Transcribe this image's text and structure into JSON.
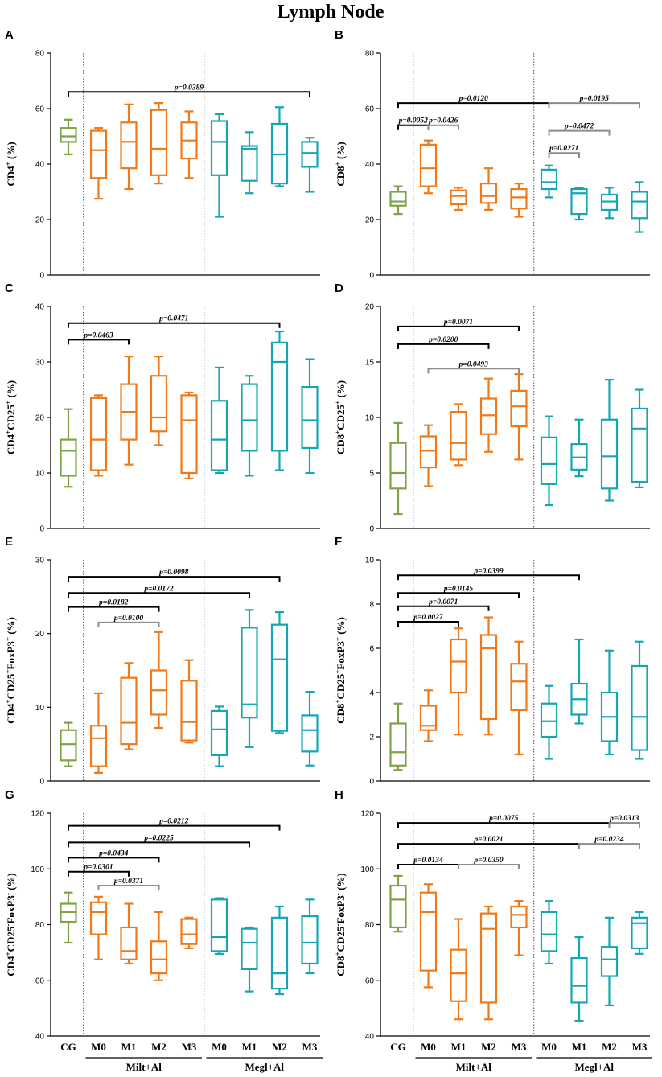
{
  "title": "Lymph Node",
  "colors": {
    "CG": "#7ea347",
    "Milt": "#f07a1a",
    "Megl": "#14a6b5",
    "sig_black": "#000000",
    "sig_gray": "#8c8c8c"
  },
  "categories": [
    "CG",
    "M0",
    "M1",
    "M2",
    "M3",
    "M0",
    "M1",
    "M2",
    "M3"
  ],
  "groups": [
    {
      "label": "Milt+Al",
      "from": 1,
      "to": 4
    },
    {
      "label": "Megl+Al",
      "from": 5,
      "to": 8
    }
  ],
  "chart_data": [
    {
      "panel": "A",
      "type": "box",
      "ylabel": "CD4",
      "ylabel_sup": "+",
      "ylabel_suffix": " (%)",
      "ylim": [
        0,
        80
      ],
      "yticks": [
        0,
        20,
        40,
        60,
        80
      ],
      "yticklabels": [
        "0",
        "20",
        "40",
        "60",
        "80"
      ],
      "boxes": [
        {
          "min": 43.5,
          "q1": 48,
          "median": 50,
          "q3": 53,
          "max": 56
        },
        {
          "min": 27.5,
          "q1": 35,
          "median": 45,
          "q3": 52,
          "max": 53
        },
        {
          "min": 31,
          "q1": 38.5,
          "median": 48,
          "q3": 55,
          "max": 61.5
        },
        {
          "min": 33,
          "q1": 36,
          "median": 45.5,
          "q3": 59.5,
          "max": 62
        },
        {
          "min": 35,
          "q1": 42,
          "median": 48.5,
          "q3": 55,
          "max": 59
        },
        {
          "min": 21,
          "q1": 36,
          "median": 48,
          "q3": 55.5,
          "max": 58
        },
        {
          "min": 29.5,
          "q1": 34,
          "median": 45.5,
          "q3": 46.5,
          "max": 51.5
        },
        {
          "min": 32,
          "q1": 33,
          "median": 43.5,
          "q3": 54.5,
          "max": 60.5
        },
        {
          "min": 30,
          "q1": 39,
          "median": 44,
          "q3": 48,
          "max": 49.5
        }
      ],
      "comparisons": [
        {
          "from": 0,
          "to": 8,
          "label": "p=0.0389",
          "color": "black",
          "y": 66
        }
      ]
    },
    {
      "panel": "B",
      "type": "box",
      "ylabel": "CD8",
      "ylabel_sup": "+",
      "ylabel_suffix": " (%)",
      "ylim": [
        0,
        80
      ],
      "yticks": [
        0,
        20,
        40,
        60,
        80
      ],
      "yticklabels": [
        "0",
        "20",
        "40",
        "60",
        "80"
      ],
      "boxes": [
        {
          "min": 22,
          "q1": 25,
          "median": 26.5,
          "q3": 30,
          "max": 32
        },
        {
          "min": 29.5,
          "q1": 32,
          "median": 38.5,
          "q3": 47,
          "max": 48.5
        },
        {
          "min": 23.5,
          "q1": 25.5,
          "median": 28.5,
          "q3": 30.5,
          "max": 31.5
        },
        {
          "min": 23.5,
          "q1": 26,
          "median": 28.5,
          "q3": 33,
          "max": 38.5
        },
        {
          "min": 21,
          "q1": 24,
          "median": 28,
          "q3": 31,
          "max": 33
        },
        {
          "min": 28,
          "q1": 31,
          "median": 33.5,
          "q3": 38,
          "max": 39.5
        },
        {
          "min": 20,
          "q1": 22,
          "median": 29.5,
          "q3": 31,
          "max": 31.5
        },
        {
          "min": 20.5,
          "q1": 23.5,
          "median": 26.5,
          "q3": 29,
          "max": 31.5
        },
        {
          "min": 15.5,
          "q1": 20.5,
          "median": 26.5,
          "q3": 30,
          "max": 33.5
        }
      ],
      "comparisons": [
        {
          "from": 0,
          "to": 5,
          "label": "p=0.0120",
          "color": "black",
          "y": 62
        },
        {
          "from": 5,
          "to": 8,
          "label": "p=0.0195",
          "color": "gray",
          "y": 62
        },
        {
          "from": 0,
          "to": 1,
          "label": "p=0.0052",
          "color": "black",
          "y": 54
        },
        {
          "from": 1,
          "to": 2,
          "label": "p=0.0426",
          "color": "gray",
          "y": 54
        },
        {
          "from": 5,
          "to": 7,
          "label": "p=0.0472",
          "color": "gray",
          "y": 52
        },
        {
          "from": 5,
          "to": 6,
          "label": "p=0.0271",
          "color": "gray",
          "y": 44
        }
      ]
    },
    {
      "panel": "C",
      "type": "box",
      "ylabel": "CD4",
      "ylabel_sup": "+",
      "ylabel_mid": "CD25",
      "ylabel_sup2": "+",
      "ylabel_suffix": " (%)",
      "ylim": [
        0,
        40
      ],
      "yticks": [
        0,
        10,
        20,
        30,
        40
      ],
      "yticklabels": [
        "0",
        "10",
        "20",
        "30",
        "40"
      ],
      "boxes": [
        {
          "min": 7.5,
          "q1": 9.5,
          "median": 14,
          "q3": 16,
          "max": 21.5
        },
        {
          "min": 9.5,
          "q1": 10.5,
          "median": 16,
          "q3": 23.5,
          "max": 24
        },
        {
          "min": 11.5,
          "q1": 16,
          "median": 21,
          "q3": 26,
          "max": 31
        },
        {
          "min": 15,
          "q1": 17.5,
          "median": 20,
          "q3": 27.5,
          "max": 31
        },
        {
          "min": 9,
          "q1": 10,
          "median": 19.5,
          "q3": 24,
          "max": 24.5
        },
        {
          "min": 10,
          "q1": 10.5,
          "median": 16,
          "q3": 23,
          "max": 29
        },
        {
          "min": 9.5,
          "q1": 14,
          "median": 19.5,
          "q3": 26,
          "max": 27.5
        },
        {
          "min": 10.5,
          "q1": 14,
          "median": 30,
          "q3": 33.5,
          "max": 35.5
        },
        {
          "min": 10,
          "q1": 14.5,
          "median": 19.5,
          "q3": 25.5,
          "max": 30.5
        }
      ],
      "comparisons": [
        {
          "from": 0,
          "to": 7,
          "label": "p=0.0471",
          "color": "black",
          "y": 37
        },
        {
          "from": 0,
          "to": 2,
          "label": "p=0.0463",
          "color": "black",
          "y": 34
        }
      ]
    },
    {
      "panel": "D",
      "type": "box",
      "ylabel": "CD8",
      "ylabel_sup": "+",
      "ylabel_mid": "CD25",
      "ylabel_sup2": "+",
      "ylabel_suffix": " (%)",
      "ylim": [
        0,
        20
      ],
      "yticks": [
        0,
        5,
        10,
        15,
        20
      ],
      "yticklabels": [
        "0",
        "5",
        "10",
        "15",
        "20"
      ],
      "boxes": [
        {
          "min": 1.3,
          "q1": 3.6,
          "median": 5,
          "q3": 7.7,
          "max": 9.5
        },
        {
          "min": 3.8,
          "q1": 5.5,
          "median": 7,
          "q3": 8.3,
          "max": 9.3
        },
        {
          "min": 5.7,
          "q1": 6.2,
          "median": 7.7,
          "q3": 10.5,
          "max": 11.2
        },
        {
          "min": 6.9,
          "q1": 8.5,
          "median": 10.2,
          "q3": 11.7,
          "max": 13.5
        },
        {
          "min": 6.2,
          "q1": 9.2,
          "median": 11,
          "q3": 12.4,
          "max": 13.9
        },
        {
          "min": 2.1,
          "q1": 4,
          "median": 5.8,
          "q3": 8.2,
          "max": 10.1
        },
        {
          "min": 4.7,
          "q1": 5.3,
          "median": 6.4,
          "q3": 7.6,
          "max": 9.8
        },
        {
          "min": 2.5,
          "q1": 3.6,
          "median": 6.5,
          "q3": 9.8,
          "max": 13.4
        },
        {
          "min": 3.7,
          "q1": 4.2,
          "median": 9,
          "q3": 10.8,
          "max": 12.5
        }
      ],
      "comparisons": [
        {
          "from": 0,
          "to": 4,
          "label": "p=0.0071",
          "color": "black",
          "y": 18.2
        },
        {
          "from": 0,
          "to": 3,
          "label": "p=0.0200",
          "color": "black",
          "y": 16.6
        },
        {
          "from": 1,
          "to": 4,
          "label": "p=0.0493",
          "color": "gray",
          "y": 14.4
        }
      ]
    },
    {
      "panel": "E",
      "type": "box",
      "ylabel": "CD4",
      "ylabel_sup": "+",
      "ylabel_mid": "CD25",
      "ylabel_sup2": "+",
      "ylabel_mid2": "FoxP3",
      "ylabel_sup3": "+",
      "ylabel_suffix": " (%)",
      "ylim": [
        0,
        30
      ],
      "yticks": [
        0,
        10,
        20,
        30
      ],
      "yticklabels": [
        "0",
        "10",
        "20",
        "30"
      ],
      "boxes": [
        {
          "min": 2,
          "q1": 2.8,
          "median": 5,
          "q3": 6.9,
          "max": 7.9
        },
        {
          "min": 1.1,
          "q1": 2,
          "median": 5.8,
          "q3": 7.5,
          "max": 11.9
        },
        {
          "min": 4.3,
          "q1": 5,
          "median": 7.9,
          "q3": 14,
          "max": 16
        },
        {
          "min": 7.2,
          "q1": 9,
          "median": 12.3,
          "q3": 15,
          "max": 20.2
        },
        {
          "min": 5.2,
          "q1": 5.5,
          "median": 8,
          "q3": 13.6,
          "max": 16.4
        },
        {
          "min": 2,
          "q1": 3.5,
          "median": 7,
          "q3": 9.5,
          "max": 10.1
        },
        {
          "min": 4.6,
          "q1": 8.6,
          "median": 10.4,
          "q3": 20.8,
          "max": 23.2
        },
        {
          "min": 6.5,
          "q1": 6.8,
          "median": 16.5,
          "q3": 21.2,
          "max": 22.9
        },
        {
          "min": 2.1,
          "q1": 4,
          "median": 6.9,
          "q3": 8.9,
          "max": 12.1
        }
      ],
      "comparisons": [
        {
          "from": 0,
          "to": 7,
          "label": "p=0.0098",
          "color": "black",
          "y": 27.7
        },
        {
          "from": 0,
          "to": 6,
          "label": "p=0.0172",
          "color": "black",
          "y": 25.5
        },
        {
          "from": 0,
          "to": 3,
          "label": "p=0.0182",
          "color": "black",
          "y": 23.6
        },
        {
          "from": 1,
          "to": 3,
          "label": "p=0.0100",
          "color": "gray",
          "y": 21.5
        }
      ]
    },
    {
      "panel": "F",
      "type": "box",
      "ylabel": "CD8",
      "ylabel_sup": "+",
      "ylabel_mid": "CD25",
      "ylabel_sup2": "+",
      "ylabel_mid2": "FoxP3",
      "ylabel_sup3": "+",
      "ylabel_suffix": " (%)",
      "ylim": [
        0,
        10
      ],
      "yticks": [
        0,
        2,
        4,
        6,
        8,
        10
      ],
      "yticklabels": [
        "0",
        "2",
        "4",
        "6",
        "8",
        "10"
      ],
      "boxes": [
        {
          "min": 0.5,
          "q1": 0.7,
          "median": 1.3,
          "q3": 2.6,
          "max": 3.5
        },
        {
          "min": 1.8,
          "q1": 2.3,
          "median": 2.5,
          "q3": 3.4,
          "max": 4.1
        },
        {
          "min": 2.1,
          "q1": 4,
          "median": 5.4,
          "q3": 6.4,
          "max": 6.9
        },
        {
          "min": 2.1,
          "q1": 2.8,
          "median": 6,
          "q3": 6.6,
          "max": 7.4
        },
        {
          "min": 1.2,
          "q1": 3.2,
          "median": 4.5,
          "q3": 5.3,
          "max": 6.3
        },
        {
          "min": 1,
          "q1": 2,
          "median": 2.7,
          "q3": 3.5,
          "max": 4.3
        },
        {
          "min": 2.6,
          "q1": 3,
          "median": 3.7,
          "q3": 4.4,
          "max": 6.4
        },
        {
          "min": 1.2,
          "q1": 1.8,
          "median": 2.9,
          "q3": 4,
          "max": 5.9
        },
        {
          "min": 1,
          "q1": 1.4,
          "median": 2.9,
          "q3": 5.2,
          "max": 6.3
        }
      ],
      "comparisons": [
        {
          "from": 0,
          "to": 6,
          "label": "p=0.0399",
          "color": "black",
          "y": 9.3
        },
        {
          "from": 0,
          "to": 4,
          "label": "p=0.0145",
          "color": "black",
          "y": 8.5
        },
        {
          "from": 0,
          "to": 3,
          "label": "p=0.0071",
          "color": "black",
          "y": 7.9
        },
        {
          "from": 0,
          "to": 2,
          "label": "p=0.0027",
          "color": "black",
          "y": 7.2
        }
      ]
    },
    {
      "panel": "G",
      "type": "box",
      "ylabel": "CD4",
      "ylabel_sup": "+",
      "ylabel_mid": "CD25",
      "ylabel_sup2": "-",
      "ylabel_mid2": "FoxP3",
      "ylabel_sup3": "-",
      "ylabel_suffix": " (%)",
      "ylim": [
        40,
        120
      ],
      "yticks": [
        40,
        60,
        80,
        100,
        120
      ],
      "yticklabels": [
        "40",
        "60",
        "80",
        "100",
        "120"
      ],
      "boxes": [
        {
          "min": 73.5,
          "q1": 81,
          "median": 84.5,
          "q3": 87.5,
          "max": 91.5
        },
        {
          "min": 67.5,
          "q1": 76.5,
          "median": 84.5,
          "q3": 88,
          "max": 90
        },
        {
          "min": 66,
          "q1": 67.5,
          "median": 70.5,
          "q3": 79,
          "max": 87.5
        },
        {
          "min": 60,
          "q1": 62.5,
          "median": 67.5,
          "q3": 74,
          "max": 84.5
        },
        {
          "min": 71.5,
          "q1": 73,
          "median": 76.5,
          "q3": 82,
          "max": 82.5
        },
        {
          "min": 69.5,
          "q1": 70.5,
          "median": 75.5,
          "q3": 89,
          "max": 89.5
        },
        {
          "min": 56,
          "q1": 64,
          "median": 73.5,
          "q3": 78.5,
          "max": 79
        },
        {
          "min": 55,
          "q1": 57,
          "median": 62.5,
          "q3": 82.5,
          "max": 86.5
        },
        {
          "min": 62.5,
          "q1": 66,
          "median": 73.5,
          "q3": 83,
          "max": 89
        }
      ],
      "comparisons": [
        {
          "from": 0,
          "to": 7,
          "label": "p=0.0212",
          "color": "black",
          "y": 115.5
        },
        {
          "from": 0,
          "to": 6,
          "label": "p=0.0225",
          "color": "black",
          "y": 109.5
        },
        {
          "from": 0,
          "to": 3,
          "label": "p=0.0434",
          "color": "black",
          "y": 104
        },
        {
          "from": 0,
          "to": 2,
          "label": "p=0.0301",
          "color": "black",
          "y": 99
        },
        {
          "from": 1,
          "to": 3,
          "label": "p=0.0371",
          "color": "gray",
          "y": 94
        }
      ]
    },
    {
      "panel": "H",
      "type": "box",
      "ylabel": "CD8",
      "ylabel_sup": "+",
      "ylabel_mid": "CD25",
      "ylabel_sup2": "-",
      "ylabel_mid2": "FoxP3",
      "ylabel_sup3": "-",
      "ylabel_suffix": " (%)",
      "ylim": [
        40,
        120
      ],
      "yticks": [
        40,
        60,
        80,
        100,
        120
      ],
      "yticklabels": [
        "40",
        "60",
        "80",
        "100",
        "120"
      ],
      "boxes": [
        {
          "min": 77.5,
          "q1": 79,
          "median": 89,
          "q3": 94,
          "max": 97.5
        },
        {
          "min": 57.5,
          "q1": 63.5,
          "median": 84.5,
          "q3": 91.5,
          "max": 94.5
        },
        {
          "min": 46,
          "q1": 52.5,
          "median": 62.5,
          "q3": 71,
          "max": 82
        },
        {
          "min": 46,
          "q1": 52,
          "median": 78.5,
          "q3": 84,
          "max": 86.5
        },
        {
          "min": 69,
          "q1": 79,
          "median": 83.5,
          "q3": 86.5,
          "max": 88.5
        },
        {
          "min": 66,
          "q1": 70.5,
          "median": 76.5,
          "q3": 84.5,
          "max": 88.5
        },
        {
          "min": 45.5,
          "q1": 52,
          "median": 58,
          "q3": 68,
          "max": 75.5
        },
        {
          "min": 51,
          "q1": 61.5,
          "median": 67.5,
          "q3": 72,
          "max": 82.5
        },
        {
          "min": 69.5,
          "q1": 71.5,
          "median": 80.5,
          "q3": 82.5,
          "max": 84.5
        }
      ],
      "comparisons": [
        {
          "from": 0,
          "to": 7,
          "label": "p=0.0075",
          "color": "black",
          "y": 116.5
        },
        {
          "from": 7,
          "to": 8,
          "label": "p=0.0313",
          "color": "gray",
          "y": 116.5
        },
        {
          "from": 0,
          "to": 6,
          "label": "p=0.0021",
          "color": "black",
          "y": 109
        },
        {
          "from": 6,
          "to": 8,
          "label": "p=0.0234",
          "color": "gray",
          "y": 109
        },
        {
          "from": 0,
          "to": 2,
          "label": "p=0.0134",
          "color": "black",
          "y": 101.5
        },
        {
          "from": 2,
          "to": 4,
          "label": "p=0.0350",
          "color": "gray",
          "y": 101.5
        }
      ]
    }
  ]
}
